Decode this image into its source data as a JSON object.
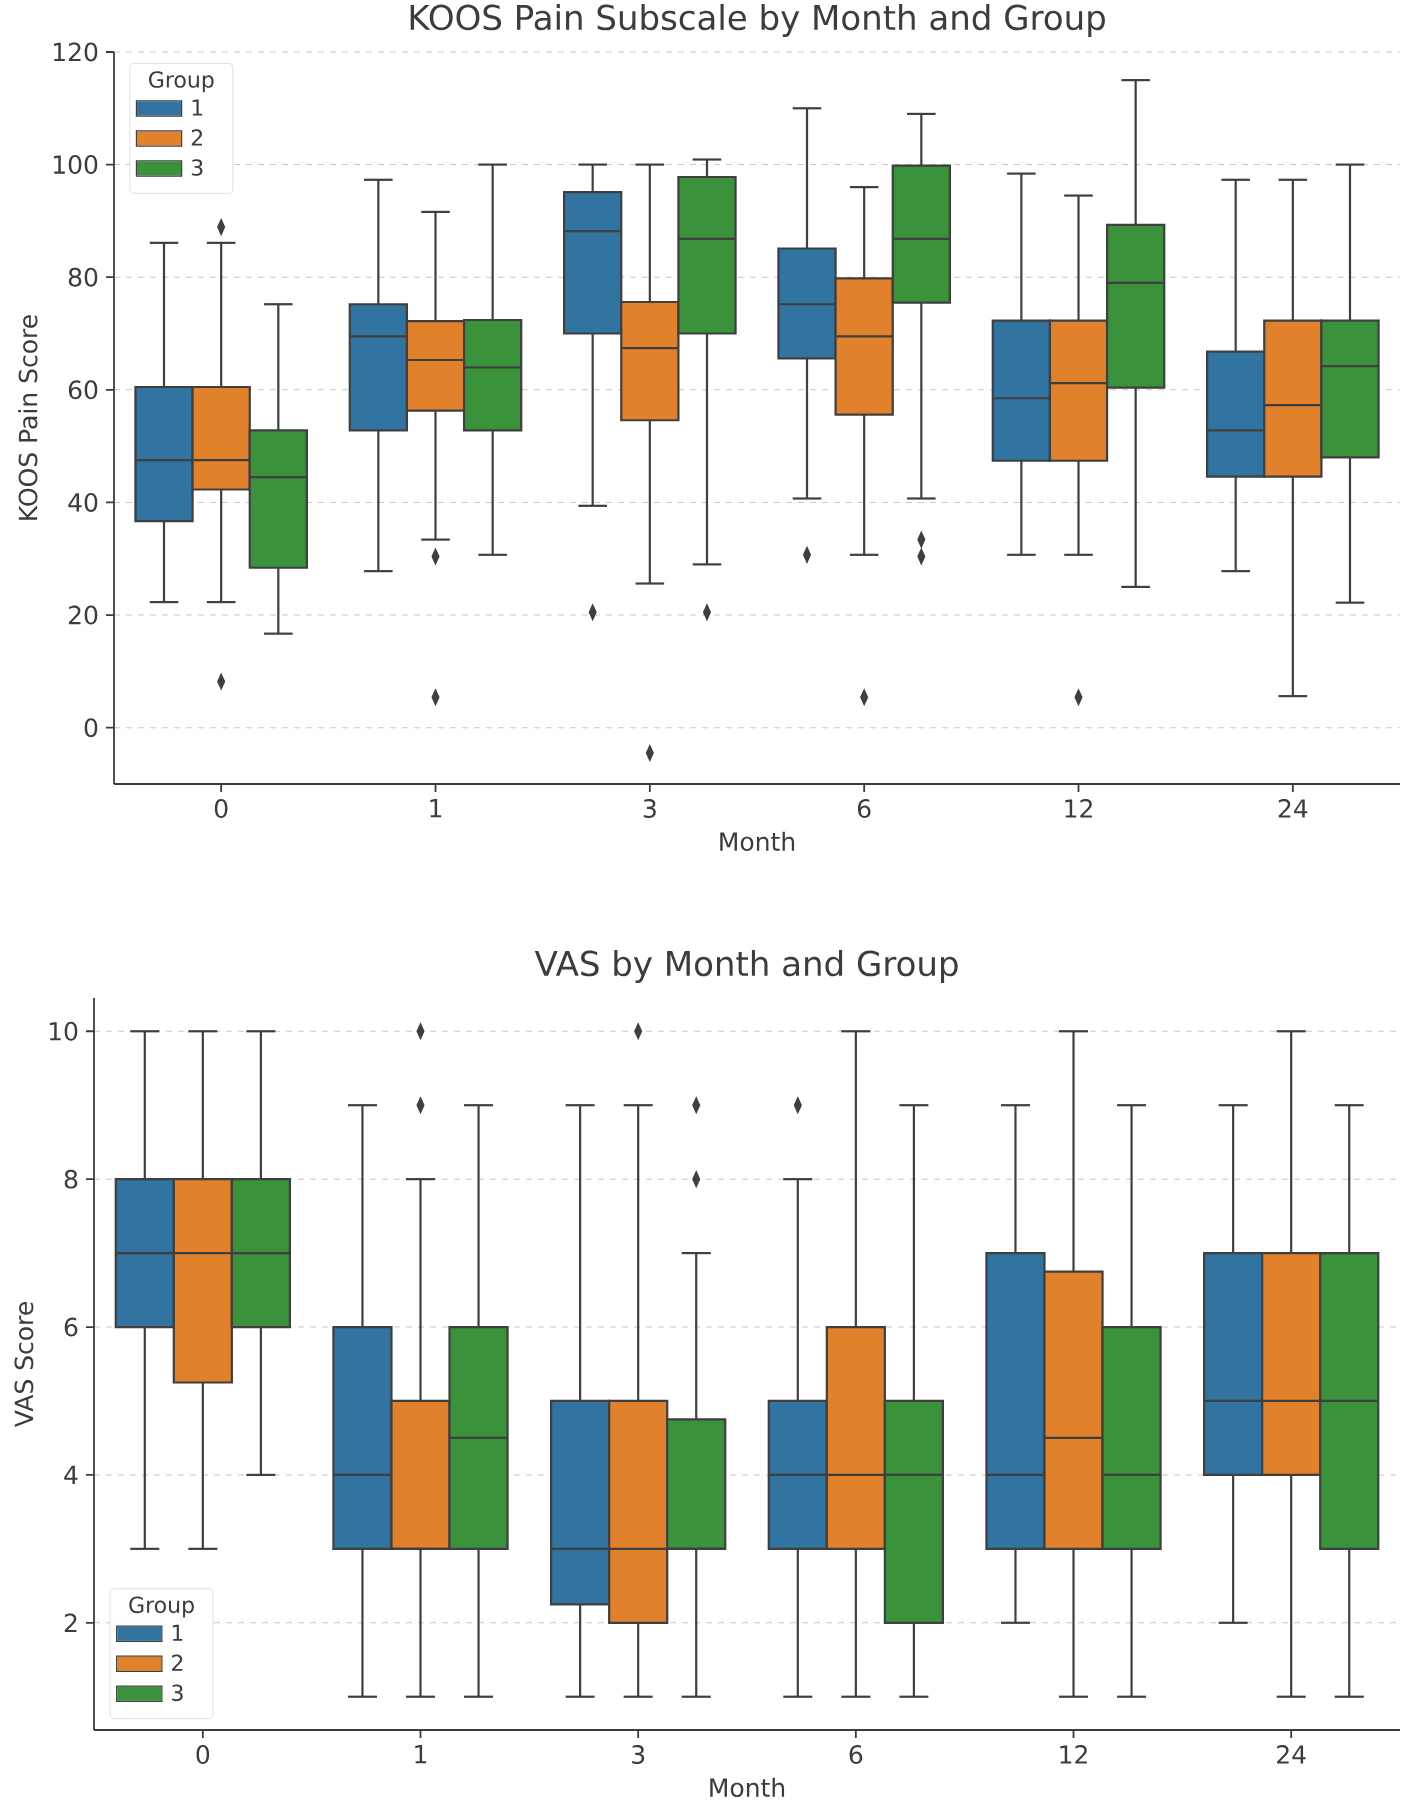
{
  "chart_data": [
    {
      "type": "box",
      "title": "KOOS Pain Subscale by Month and Group",
      "xlabel": "Month",
      "ylabel": "KOOS Pain Score",
      "legend_title": "Group",
      "legend": "top left",
      "grid": "y",
      "categories": [
        "0",
        "1",
        "3",
        "6",
        "12",
        "24"
      ],
      "ylim": [
        -10,
        120
      ],
      "yticks": [
        0,
        20,
        40,
        60,
        80,
        100,
        120
      ],
      "series": [
        {
          "name": "1",
          "color": "#3274a1",
          "boxes": [
            {
              "low": 22.3,
              "q1": 36.7,
              "median": 47.5,
              "q3": 60.5,
              "high": 86.1
            },
            {
              "low": 27.8,
              "q1": 52.8,
              "median": 69.5,
              "q3": 75.2,
              "high": 97.3
            },
            {
              "low": 39.4,
              "q1": 70,
              "median": 88.2,
              "q3": 95.1,
              "high": 100,
              "outliers": [
                20.5
              ]
            },
            {
              "low": 40.7,
              "q1": 65.6,
              "median": 75.2,
              "q3": 85.1,
              "high": 110,
              "outliers": [
                30.7
              ]
            },
            {
              "low": 30.7,
              "q1": 47.4,
              "median": 58.5,
              "q3": 72.3,
              "high": 98.4
            },
            {
              "low": 27.8,
              "q1": 44.6,
              "median": 52.8,
              "q3": 66.8,
              "high": 97.3
            }
          ]
        },
        {
          "name": "2",
          "color": "#e1812c",
          "boxes": [
            {
              "low": 22.3,
              "q1": 42.3,
              "median": 47.5,
              "q3": 60.5,
              "high": 86.1,
              "outliers": [
                8.2,
                88.9
              ]
            },
            {
              "low": 33.4,
              "q1": 56.3,
              "median": 65.3,
              "q3": 72.2,
              "high": 91.6,
              "outliers": [
                30.4,
                5.4
              ]
            },
            {
              "low": 25.6,
              "q1": 54.6,
              "median": 67.4,
              "q3": 75.6,
              "high": 100,
              "outliers": [
                -4.5
              ]
            },
            {
              "low": 30.7,
              "q1": 55.6,
              "median": 69.5,
              "q3": 79.8,
              "high": 96,
              "outliers": [
                5.4
              ]
            },
            {
              "low": 30.7,
              "q1": 47.4,
              "median": 61.2,
              "q3": 72.3,
              "high": 94.5,
              "outliers": [
                5.4
              ]
            },
            {
              "low": 5.6,
              "q1": 44.6,
              "median": 57.3,
              "q3": 72.3,
              "high": 97.3
            }
          ]
        },
        {
          "name": "3",
          "color": "#3a923a",
          "boxes": [
            {
              "low": 16.7,
              "q1": 28.4,
              "median": 44.5,
              "q3": 52.8,
              "high": 75.2
            },
            {
              "low": 30.7,
              "q1": 52.8,
              "median": 64,
              "q3": 72.4,
              "high": 100
            },
            {
              "low": 29,
              "q1": 70,
              "median": 86.8,
              "q3": 97.8,
              "high": 100.9,
              "outliers": [
                20.5
              ]
            },
            {
              "low": 40.7,
              "q1": 75.5,
              "median": 86.8,
              "q3": 99.8,
              "high": 109,
              "outliers": [
                33.4,
                30.4
              ]
            },
            {
              "low": 25,
              "q1": 60.4,
              "median": 79,
              "q3": 89.3,
              "high": 115
            },
            {
              "low": 22.2,
              "q1": 48,
              "median": 64.2,
              "q3": 72.3,
              "high": 100
            }
          ]
        }
      ]
    },
    {
      "type": "box",
      "title": "VAS by Month and Group",
      "xlabel": "Month",
      "ylabel": "VAS Score",
      "legend_title": "Group",
      "legend": "bottom left",
      "grid": "y",
      "categories": [
        "0",
        "1",
        "3",
        "6",
        "12",
        "24"
      ],
      "ylim": [
        0.55,
        10.45
      ],
      "yticks": [
        2,
        4,
        6,
        8,
        10
      ],
      "series": [
        {
          "name": "1",
          "color": "#3274a1",
          "boxes": [
            {
              "low": 3,
              "q1": 6,
              "median": 7,
              "q3": 8,
              "high": 10
            },
            {
              "low": 1,
              "q1": 3,
              "median": 4,
              "q3": 6,
              "high": 9
            },
            {
              "low": 1,
              "q1": 2.25,
              "median": 3,
              "q3": 5,
              "high": 9
            },
            {
              "low": 1,
              "q1": 3,
              "median": 4,
              "q3": 5,
              "high": 8,
              "outliers": [
                9
              ]
            },
            {
              "low": 2,
              "q1": 3,
              "median": 4,
              "q3": 7,
              "high": 9
            },
            {
              "low": 2,
              "q1": 4,
              "median": 5,
              "q3": 7,
              "high": 9
            }
          ]
        },
        {
          "name": "2",
          "color": "#e1812c",
          "boxes": [
            {
              "low": 3,
              "q1": 5.25,
              "median": 7,
              "q3": 8,
              "high": 10
            },
            {
              "low": 1,
              "q1": 3,
              "median": 3,
              "q3": 5,
              "high": 8,
              "outliers": [
                9,
                10
              ]
            },
            {
              "low": 1,
              "q1": 2,
              "median": 3,
              "q3": 5,
              "high": 9,
              "outliers": [
                10
              ]
            },
            {
              "low": 1,
              "q1": 3,
              "median": 4,
              "q3": 6,
              "high": 10
            },
            {
              "low": 1,
              "q1": 3,
              "median": 4.5,
              "q3": 6.75,
              "high": 10
            },
            {
              "low": 1,
              "q1": 4,
              "median": 5,
              "q3": 7,
              "high": 10
            }
          ]
        },
        {
          "name": "3",
          "color": "#3a923a",
          "boxes": [
            {
              "low": 4,
              "q1": 6,
              "median": 7,
              "q3": 8,
              "high": 10
            },
            {
              "low": 1,
              "q1": 3,
              "median": 4.5,
              "q3": 6,
              "high": 9
            },
            {
              "low": 1,
              "q1": 3,
              "median": 3,
              "q3": 4.75,
              "high": 7,
              "outliers": [
                8,
                9
              ]
            },
            {
              "low": 1,
              "q1": 2,
              "median": 4,
              "q3": 5,
              "high": 9
            },
            {
              "low": 1,
              "q1": 3,
              "median": 4,
              "q3": 6,
              "high": 9
            },
            {
              "low": 1,
              "q1": 3,
              "median": 5,
              "q3": 7,
              "high": 9
            }
          ]
        }
      ]
    }
  ]
}
